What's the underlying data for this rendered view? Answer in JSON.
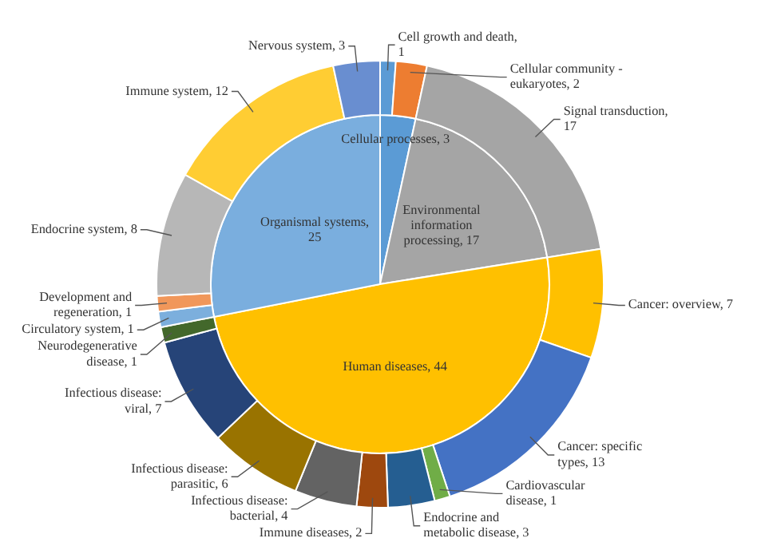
{
  "chart_data": [
    {
      "type": "pie",
      "categories": [
        "Cellular processes, 3",
        "Environmental information processing, 17",
        "Human diseases, 44",
        "Organismal systems, 25"
      ],
      "values": [
        3,
        17,
        44,
        25
      ],
      "colors": [
        "#5b9bd5",
        "#a5a5a5",
        "#ffc000",
        "#7aaede"
      ]
    },
    {
      "type": "donut",
      "categories": [
        "Cell growth and death, 1",
        "Cellular community - eukaryotes, 2",
        "Signal transduction, 17",
        "Cancer: overview, 7",
        "Cancer: specific types, 13",
        "Cardiovascular disease, 1",
        "Endocrine and metabolic disease, 3",
        "Immune diseases, 2",
        "Infectious disease: bacterial, 4",
        "Infectious disease: parasitic, 6",
        "Infectious disease: viral, 7",
        "Neurodegenerative disease, 1",
        "Circulatory system, 1",
        "Development and regeneration, 1",
        "Endocrine system, 8",
        "Immune system, 12",
        "Nervous system, 3"
      ],
      "values": [
        1,
        2,
        17,
        7,
        13,
        1,
        3,
        2,
        4,
        6,
        7,
        1,
        1,
        1,
        8,
        12,
        3
      ],
      "colors": [
        "#5b9bd5",
        "#ed7d31",
        "#a5a5a5",
        "#ffc000",
        "#4472c4",
        "#70ad47",
        "#255e91",
        "#9e480e",
        "#636363",
        "#997300",
        "#264478",
        "#43682b",
        "#7cafdd",
        "#f1975a",
        "#b7b7b7",
        "#ffcd33",
        "#698ed0"
      ]
    }
  ]
}
